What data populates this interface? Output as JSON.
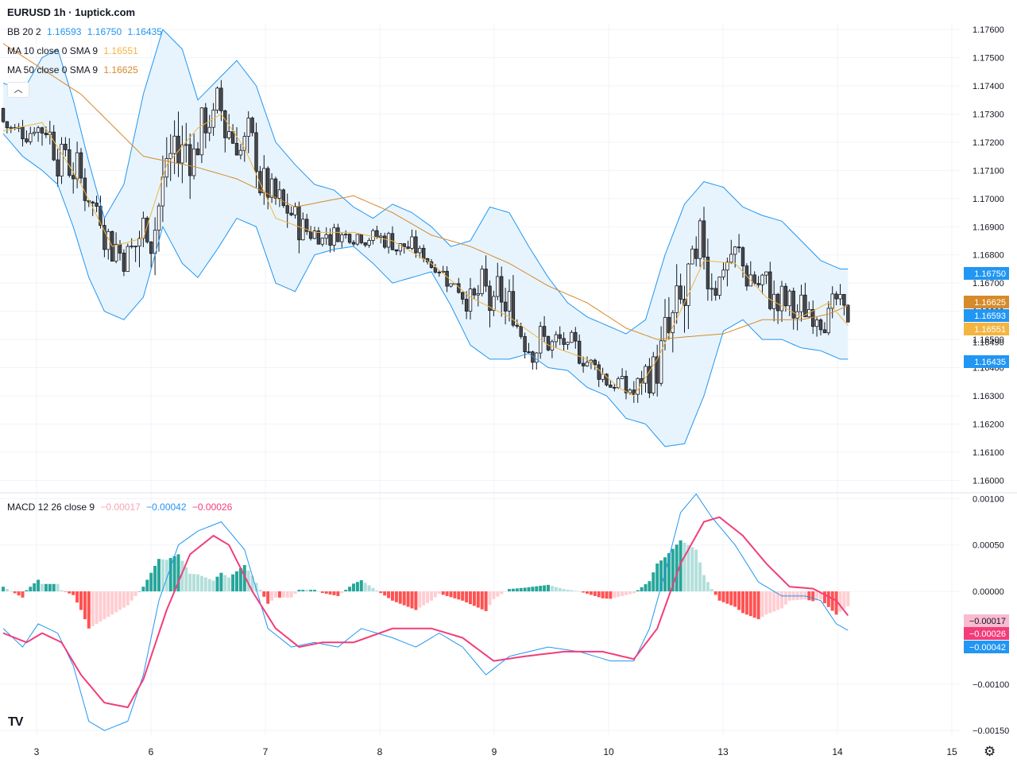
{
  "header": {
    "title": "EURUSD 1h · 1uptick.com"
  },
  "legend": {
    "bb": {
      "label": "BB 20 2",
      "basis": "1.16593",
      "upper": "1.16750",
      "lower": "1.16435"
    },
    "ma10": {
      "label": "MA 10 close 0 SMA 9",
      "value": "1.16551"
    },
    "ma50": {
      "label": "MA 50 close 0 SMA 9",
      "value": "1.16625"
    },
    "macd": {
      "label": "MACD 12 26 close 9",
      "hist": "−0.00017",
      "macd": "−0.00042",
      "signal": "−0.00026"
    }
  },
  "colors": {
    "up": "#26a69a",
    "down": "#ef5350",
    "bb": "#2196f3",
    "bbfill": "#e3f2fd",
    "ma10": "#f2b540",
    "ma50": "#d68a2a",
    "macd": "#2196f3",
    "signal": "#f23d7a",
    "candle_up": "#ffffff",
    "candle_down": "#4a4a4a"
  },
  "icons": {
    "logo": "tradingview-logo",
    "settings": "gear-icon",
    "collapse": "chevron-up-icon"
  },
  "chart_data": {
    "type": "candlestick",
    "price_axis": {
      "ticks": [
        "1.17600",
        "1.17500",
        "1.17400",
        "1.17300",
        "1.17200",
        "1.17100",
        "1.17000",
        "1.16900",
        "1.16800",
        "1.16700",
        "1.16600",
        "1.16500",
        "1.16400",
        "1.16300",
        "1.16200",
        "1.16100",
        "1.16000"
      ],
      "range": [
        1.1597,
        1.1762
      ]
    },
    "macd_axis": {
      "ticks": [
        "0.00100",
        "0.00050",
        "0.00000",
        "−0.00100",
        "−0.00150"
      ],
      "range": [
        -0.00155,
        0.00102
      ]
    },
    "time_axis": {
      "labels": [
        "3",
        "6",
        "7",
        "8",
        "9",
        "10",
        "13",
        "14",
        "15"
      ]
    },
    "last_price": "1.16490",
    "price_badges": [
      {
        "value": "1.16750",
        "color": "#2196f3"
      },
      {
        "value": "1.16625",
        "color": "#d68a2a"
      },
      {
        "value": "1.16593",
        "color": "#2196f3"
      },
      {
        "value": "1.16551",
        "color": "#f2b540"
      },
      {
        "value": "1.16435",
        "color": "#2196f3"
      }
    ],
    "macd_badges": [
      {
        "value": "−0.00017",
        "color": "#f8bbd0",
        "text": "#131722"
      },
      {
        "value": "−0.00026",
        "color": "#f23d7a",
        "text": "#ffffff"
      },
      {
        "value": "−0.00042",
        "color": "#2196f3",
        "text": "#ffffff"
      }
    ],
    "bb_upper": [
      [
        0,
        1.1741
      ],
      [
        5,
        1.1738
      ],
      [
        10,
        1.175
      ],
      [
        14,
        1.1753
      ],
      [
        18,
        1.1735
      ],
      [
        22,
        1.1713
      ],
      [
        26,
        1.1693
      ],
      [
        31,
        1.1705
      ],
      [
        36,
        1.1737
      ],
      [
        41,
        1.176
      ],
      [
        46,
        1.1753
      ],
      [
        50,
        1.1735
      ],
      [
        55,
        1.1742
      ],
      [
        60,
        1.1749
      ],
      [
        65,
        1.174
      ],
      [
        70,
        1.172
      ],
      [
        75,
        1.1712
      ],
      [
        80,
        1.1705
      ],
      [
        85,
        1.1703
      ],
      [
        90,
        1.1697
      ],
      [
        95,
        1.1693
      ],
      [
        100,
        1.1698
      ],
      [
        105,
        1.1695
      ],
      [
        110,
        1.169
      ],
      [
        115,
        1.1683
      ],
      [
        120,
        1.1685
      ],
      [
        125,
        1.1697
      ],
      [
        130,
        1.1695
      ],
      [
        135,
        1.1683
      ],
      [
        140,
        1.1672
      ],
      [
        145,
        1.1663
      ],
      [
        150,
        1.1658
      ],
      [
        155,
        1.1655
      ],
      [
        160,
        1.1652
      ],
      [
        165,
        1.1657
      ],
      [
        170,
        1.168
      ],
      [
        175,
        1.1698
      ],
      [
        180,
        1.1706
      ],
      [
        185,
        1.1704
      ],
      [
        190,
        1.1697
      ],
      [
        195,
        1.1694
      ],
      [
        200,
        1.1692
      ],
      [
        205,
        1.1685
      ],
      [
        210,
        1.1678
      ],
      [
        215,
        1.1675
      ],
      [
        217,
        1.1675
      ]
    ],
    "bb_lower": [
      [
        0,
        1.1723
      ],
      [
        5,
        1.1715
      ],
      [
        10,
        1.171
      ],
      [
        14,
        1.1705
      ],
      [
        18,
        1.169
      ],
      [
        22,
        1.1672
      ],
      [
        26,
        1.166
      ],
      [
        31,
        1.1657
      ],
      [
        36,
        1.1665
      ],
      [
        41,
        1.169
      ],
      [
        46,
        1.1677
      ],
      [
        50,
        1.1672
      ],
      [
        55,
        1.1682
      ],
      [
        60,
        1.1693
      ],
      [
        65,
        1.169
      ],
      [
        70,
        1.167
      ],
      [
        75,
        1.1667
      ],
      [
        80,
        1.168
      ],
      [
        85,
        1.1682
      ],
      [
        90,
        1.1683
      ],
      [
        95,
        1.1677
      ],
      [
        100,
        1.167
      ],
      [
        105,
        1.1672
      ],
      [
        110,
        1.1674
      ],
      [
        115,
        1.1662
      ],
      [
        120,
        1.1648
      ],
      [
        125,
        1.1643
      ],
      [
        130,
        1.1643
      ],
      [
        135,
        1.1645
      ],
      [
        140,
        1.164
      ],
      [
        145,
        1.1639
      ],
      [
        150,
        1.1633
      ],
      [
        155,
        1.163
      ],
      [
        160,
        1.1622
      ],
      [
        165,
        1.162
      ],
      [
        170,
        1.1612
      ],
      [
        175,
        1.1613
      ],
      [
        180,
        1.163
      ],
      [
        185,
        1.1653
      ],
      [
        190,
        1.1657
      ],
      [
        195,
        1.165
      ],
      [
        200,
        1.165
      ],
      [
        205,
        1.1647
      ],
      [
        210,
        1.1646
      ],
      [
        215,
        1.1643
      ],
      [
        217,
        1.1643
      ]
    ],
    "bb_basis": [
      [
        0,
        1.1732
      ],
      [
        10,
        1.1728
      ],
      [
        18,
        1.1712
      ],
      [
        26,
        1.1677
      ],
      [
        31,
        1.1681
      ],
      [
        41,
        1.1713
      ],
      [
        50,
        1.1705
      ],
      [
        55,
        1.1713
      ],
      [
        60,
        1.1721
      ],
      [
        70,
        1.1697
      ],
      [
        80,
        1.169
      ],
      [
        90,
        1.169
      ],
      [
        100,
        1.1685
      ],
      [
        110,
        1.1682
      ],
      [
        120,
        1.167
      ],
      [
        130,
        1.167
      ],
      [
        140,
        1.1656
      ],
      [
        150,
        1.1646
      ],
      [
        160,
        1.1637
      ],
      [
        165,
        1.1638
      ],
      [
        175,
        1.1655
      ],
      [
        180,
        1.1668
      ],
      [
        185,
        1.168
      ],
      [
        190,
        1.1677
      ],
      [
        200,
        1.167
      ],
      [
        210,
        1.1662
      ],
      [
        217,
        1.1659
      ]
    ],
    "ma10": [
      [
        0,
        1.1724
      ],
      [
        10,
        1.1727
      ],
      [
        20,
        1.1705
      ],
      [
        28,
        1.1683
      ],
      [
        36,
        1.1686
      ],
      [
        42,
        1.1712
      ],
      [
        50,
        1.1725
      ],
      [
        56,
        1.173
      ],
      [
        62,
        1.1718
      ],
      [
        70,
        1.1693
      ],
      [
        80,
        1.1688
      ],
      [
        90,
        1.1688
      ],
      [
        100,
        1.1685
      ],
      [
        110,
        1.1677
      ],
      [
        120,
        1.1665
      ],
      [
        130,
        1.1658
      ],
      [
        140,
        1.1648
      ],
      [
        150,
        1.1643
      ],
      [
        158,
        1.1633
      ],
      [
        162,
        1.163
      ],
      [
        168,
        1.1643
      ],
      [
        175,
        1.1663
      ],
      [
        180,
        1.1678
      ],
      [
        188,
        1.1677
      ],
      [
        196,
        1.1665
      ],
      [
        205,
        1.1658
      ],
      [
        212,
        1.1663
      ],
      [
        217,
        1.1655
      ]
    ],
    "ma50": [
      [
        0,
        1.1755
      ],
      [
        20,
        1.1737
      ],
      [
        36,
        1.1715
      ],
      [
        50,
        1.1711
      ],
      [
        60,
        1.1707
      ],
      [
        75,
        1.1697
      ],
      [
        90,
        1.1701
      ],
      [
        100,
        1.1695
      ],
      [
        110,
        1.1687
      ],
      [
        120,
        1.1683
      ],
      [
        130,
        1.1677
      ],
      [
        140,
        1.1669
      ],
      [
        150,
        1.1663
      ],
      [
        160,
        1.1654
      ],
      [
        168,
        1.165
      ],
      [
        176,
        1.1651
      ],
      [
        185,
        1.1652
      ],
      [
        195,
        1.1657
      ],
      [
        205,
        1.1657
      ],
      [
        212,
        1.1659
      ],
      [
        217,
        1.1662
      ]
    ],
    "candles_count": 218,
    "macd_line": [
      [
        0,
        -0.0004
      ],
      [
        5,
        -0.0006
      ],
      [
        9,
        -0.00035
      ],
      [
        14,
        -0.00045
      ],
      [
        18,
        -0.0008
      ],
      [
        22,
        -0.0014
      ],
      [
        26,
        -0.0015
      ],
      [
        32,
        -0.0014
      ],
      [
        36,
        -0.0009
      ],
      [
        40,
        -0.0001
      ],
      [
        45,
        0.0005
      ],
      [
        50,
        0.00065
      ],
      [
        56,
        0.00075
      ],
      [
        62,
        0.00045
      ],
      [
        68,
        -0.0004
      ],
      [
        74,
        -0.0006
      ],
      [
        80,
        -0.00055
      ],
      [
        86,
        -0.0006
      ],
      [
        92,
        -0.0004
      ],
      [
        100,
        -0.0005
      ],
      [
        106,
        -0.0006
      ],
      [
        112,
        -0.00045
      ],
      [
        118,
        -0.0006
      ],
      [
        124,
        -0.0009
      ],
      [
        130,
        -0.0007
      ],
      [
        140,
        -0.0006
      ],
      [
        148,
        -0.00065
      ],
      [
        156,
        -0.00075
      ],
      [
        162,
        -0.00075
      ],
      [
        166,
        -0.0004
      ],
      [
        170,
        0.0002
      ],
      [
        174,
        0.00085
      ],
      [
        178,
        0.00105
      ],
      [
        182,
        0.0008
      ],
      [
        188,
        0.0005
      ],
      [
        194,
        0.0001
      ],
      [
        200,
        -5e-05
      ],
      [
        206,
        -5e-05
      ],
      [
        210,
        -0.0001
      ],
      [
        214,
        -0.00035
      ],
      [
        217,
        -0.00042
      ]
    ],
    "signal_line": [
      [
        0,
        -0.00045
      ],
      [
        6,
        -0.00055
      ],
      [
        10,
        -0.00045
      ],
      [
        15,
        -0.00055
      ],
      [
        20,
        -0.0009
      ],
      [
        26,
        -0.0012
      ],
      [
        32,
        -0.00125
      ],
      [
        36,
        -0.00095
      ],
      [
        42,
        -0.0002
      ],
      [
        48,
        0.0004
      ],
      [
        54,
        0.0006
      ],
      [
        58,
        0.0005
      ],
      [
        64,
        0.0
      ],
      [
        70,
        -0.0004
      ],
      [
        76,
        -0.0006
      ],
      [
        82,
        -0.00055
      ],
      [
        90,
        -0.00055
      ],
      [
        100,
        -0.0004
      ],
      [
        110,
        -0.0004
      ],
      [
        118,
        -0.0005
      ],
      [
        126,
        -0.00075
      ],
      [
        134,
        -0.0007
      ],
      [
        144,
        -0.00065
      ],
      [
        154,
        -0.00065
      ],
      [
        162,
        -0.00073
      ],
      [
        168,
        -0.0004
      ],
      [
        174,
        0.0003
      ],
      [
        180,
        0.00075
      ],
      [
        184,
        0.0008
      ],
      [
        190,
        0.0006
      ],
      [
        196,
        0.0003
      ],
      [
        202,
        5e-05
      ],
      [
        208,
        3e-05
      ],
      [
        214,
        -0.0001
      ],
      [
        217,
        -0.00026
      ]
    ]
  }
}
